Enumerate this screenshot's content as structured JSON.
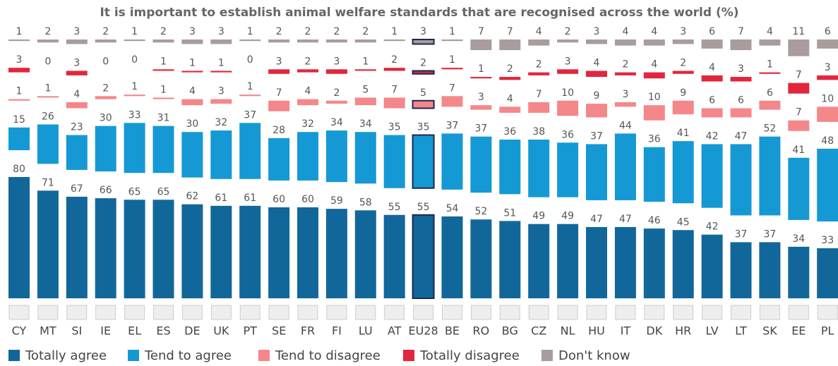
{
  "chart_data": {
    "type": "stacked_gap_bar",
    "title": "It is important to establish animal welfare standards that are recognised across the world  (%)",
    "categories": [
      "CY",
      "MT",
      "SI",
      "IE",
      "EL",
      "ES",
      "DE",
      "UK",
      "PT",
      "SE",
      "FR",
      "FI",
      "LU",
      "AT",
      "EU28",
      "BE",
      "RO",
      "BG",
      "CZ",
      "NL",
      "HU",
      "IT",
      "DK",
      "HR",
      "LV",
      "LT",
      "SK",
      "EE",
      "PL"
    ],
    "highlight": "EU28",
    "series": [
      {
        "name": "Totally agree",
        "color": "#12679a",
        "values": [
          80,
          71,
          67,
          66,
          65,
          65,
          62,
          61,
          61,
          60,
          60,
          59,
          58,
          55,
          55,
          54,
          52,
          51,
          49,
          49,
          47,
          47,
          46,
          45,
          42,
          37,
          37,
          34,
          33
        ]
      },
      {
        "name": "Tend to agree",
        "color": "#1599d4",
        "values": [
          15,
          26,
          23,
          30,
          33,
          31,
          30,
          32,
          37,
          28,
          32,
          34,
          34,
          35,
          35,
          37,
          37,
          36,
          38,
          36,
          37,
          44,
          36,
          41,
          42,
          47,
          52,
          41,
          48
        ]
      },
      {
        "name": "Tend to disagree",
        "color": "#f4878a",
        "values": [
          1,
          1,
          4,
          2,
          1,
          1,
          4,
          3,
          1,
          7,
          4,
          2,
          5,
          7,
          5,
          7,
          3,
          4,
          7,
          10,
          9,
          3,
          10,
          9,
          6,
          6,
          6,
          7,
          10
        ]
      },
      {
        "name": "Totally disagree",
        "color": "#e2263c",
        "values": [
          3,
          0,
          3,
          0,
          0,
          1,
          1,
          1,
          0,
          3,
          2,
          3,
          1,
          2,
          2,
          1,
          1,
          2,
          2,
          3,
          4,
          2,
          4,
          2,
          4,
          3,
          1,
          7,
          3
        ]
      },
      {
        "name": "Don't know",
        "color": "#a99c9c",
        "values": [
          1,
          2,
          3,
          2,
          1,
          2,
          3,
          3,
          1,
          2,
          2,
          2,
          2,
          1,
          3,
          1,
          7,
          7,
          4,
          2,
          3,
          4,
          4,
          3,
          6,
          7,
          4,
          11,
          6
        ]
      }
    ]
  }
}
